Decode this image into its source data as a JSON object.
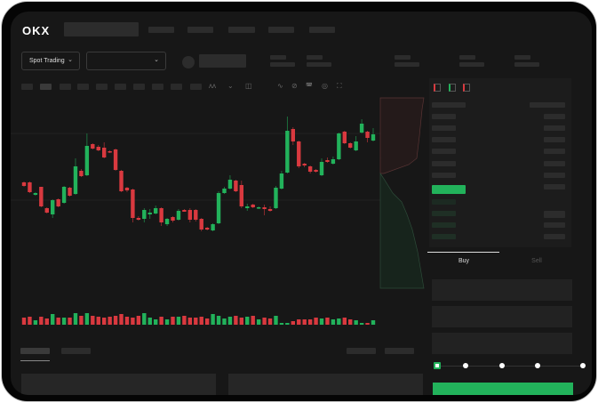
{
  "header": {
    "logo": "OKX"
  },
  "toolbar": {
    "market_select": "Spot Trading"
  },
  "orderbook": {
    "tab_icons": [
      "orderbook-both-icon",
      "orderbook-bids-icon",
      "orderbook-asks-icon"
    ]
  },
  "trade_form": {
    "buy_tab": "Buy",
    "sell_tab": "Sell",
    "leverage_steps": 5,
    "selected_step": 0
  },
  "colors": {
    "up": "#22b25b",
    "down": "#d9393f",
    "background": "#171717"
  },
  "chart_data": {
    "type": "candlestick",
    "ohlc": [
      [
        57,
        58,
        52,
        53
      ],
      [
        57,
        58,
        45,
        46
      ],
      [
        43,
        46,
        42,
        45
      ],
      [
        52,
        52,
        29,
        30
      ],
      [
        28,
        29,
        22,
        23
      ],
      [
        21,
        38,
        17,
        37
      ],
      [
        38,
        39,
        29,
        30
      ],
      [
        34,
        53,
        33,
        52
      ],
      [
        51,
        52,
        41,
        42
      ],
      [
        44,
        84,
        43,
        75
      ],
      [
        70,
        72,
        63,
        64
      ],
      [
        65,
        112,
        64,
        98
      ],
      [
        100,
        101,
        94,
        95
      ],
      [
        97,
        99,
        92,
        93
      ],
      [
        96,
        102,
        84,
        85
      ],
      [
        92,
        93,
        90,
        91
      ],
      [
        94,
        95,
        70,
        71
      ],
      [
        70,
        71,
        46,
        47
      ],
      [
        51,
        52,
        46,
        48
      ],
      [
        49,
        50,
        12,
        17
      ],
      [
        17,
        19,
        14,
        15
      ],
      [
        16,
        28,
        12,
        26
      ],
      [
        21,
        27,
        16,
        23
      ],
      [
        22,
        31,
        21,
        28
      ],
      [
        28,
        29,
        8,
        12
      ],
      [
        10,
        17,
        8,
        16
      ],
      [
        18,
        19,
        12,
        14
      ],
      [
        15,
        27,
        14,
        25
      ],
      [
        26,
        27,
        24,
        24
      ],
      [
        26,
        28,
        12,
        15
      ],
      [
        26,
        27,
        13,
        15
      ],
      [
        16,
        17,
        2,
        4
      ],
      [
        6,
        7,
        3,
        4
      ],
      [
        3,
        11,
        2,
        10
      ],
      [
        11,
        47,
        10,
        45
      ],
      [
        45,
        52,
        44,
        50
      ],
      [
        50,
        65,
        49,
        60
      ],
      [
        59,
        60,
        46,
        47
      ],
      [
        54,
        59,
        28,
        30
      ],
      [
        28,
        33,
        25,
        30
      ],
      [
        32,
        33,
        28,
        29
      ],
      [
        28,
        30,
        27,
        29
      ],
      [
        29,
        32,
        20,
        27
      ],
      [
        27,
        30,
        24,
        25
      ],
      [
        28,
        53,
        27,
        51
      ],
      [
        50,
        70,
        49,
        67
      ],
      [
        68,
        131,
        67,
        115
      ],
      [
        117,
        119,
        99,
        103
      ],
      [
        103,
        104,
        73,
        75
      ],
      [
        78,
        79,
        74,
        76
      ],
      [
        75,
        76,
        67,
        69
      ],
      [
        71,
        72,
        68,
        69
      ],
      [
        65,
        84,
        64,
        80
      ],
      [
        82,
        85,
        79,
        80
      ],
      [
        78,
        86,
        77,
        83
      ],
      [
        83,
        113,
        82,
        112
      ],
      [
        114,
        115,
        100,
        101
      ],
      [
        101,
        102,
        95,
        96
      ],
      [
        93,
        109,
        92,
        103
      ],
      [
        113,
        128,
        112,
        123
      ],
      [
        114,
        115,
        102,
        107
      ],
      [
        104,
        118,
        103,
        111
      ]
    ],
    "volume": [
      8,
      9,
      5,
      9,
      7,
      12,
      8,
      8,
      8,
      13,
      10,
      13,
      10,
      9,
      8,
      9,
      10,
      12,
      9,
      8,
      10,
      13,
      8,
      6,
      9,
      6,
      9,
      9,
      10,
      8,
      8,
      9,
      7,
      12,
      10,
      7,
      9,
      10,
      8,
      9,
      10,
      6,
      8,
      7,
      10,
      2,
      2,
      4,
      6,
      6,
      6,
      8,
      7,
      8,
      6,
      7,
      8,
      6,
      5,
      2,
      2,
      5
    ],
    "depth": {
      "asks": "down",
      "bids": "up"
    }
  }
}
